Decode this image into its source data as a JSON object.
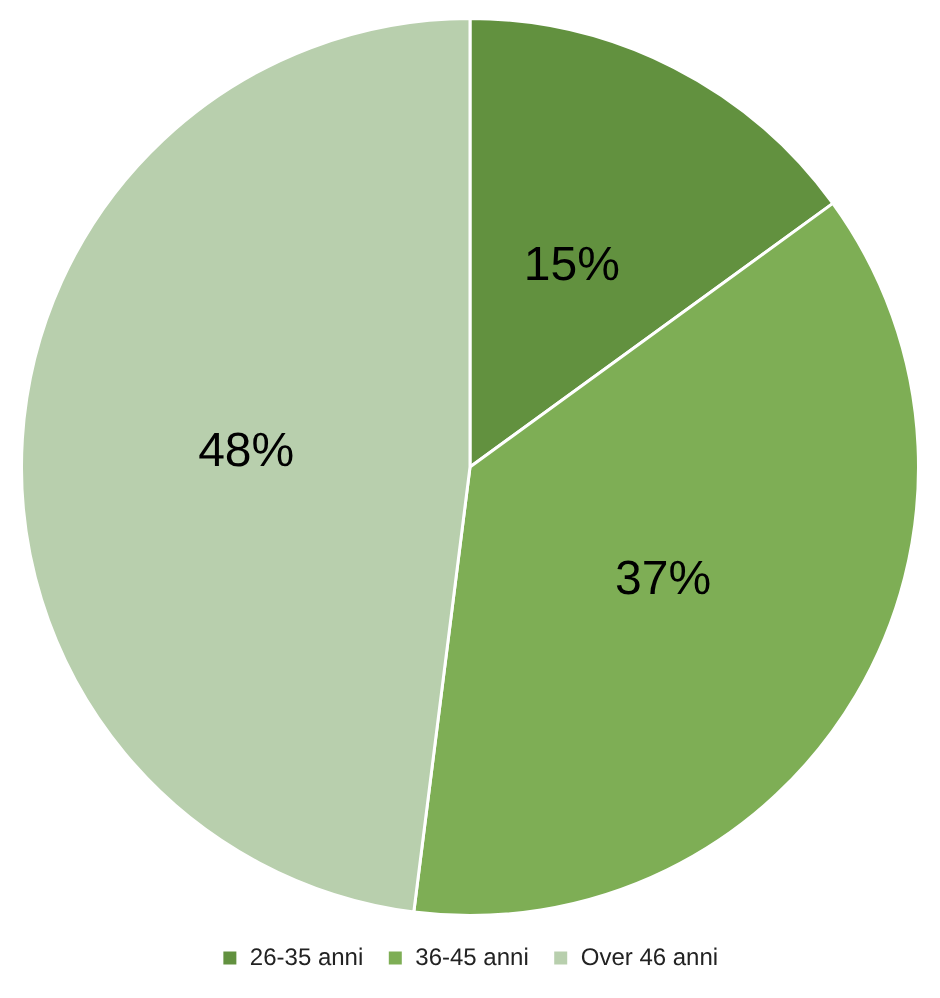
{
  "chart_data": {
    "type": "pie",
    "categories": [
      "26-35 anni",
      "36-45 anni",
      "Over 46 anni"
    ],
    "values": [
      15,
      37,
      48
    ],
    "colors": [
      "#62913f",
      "#7eae55",
      "#b8cfad"
    ],
    "value_labels": [
      "15%",
      "37%",
      "48%"
    ],
    "legend": "bottom"
  }
}
